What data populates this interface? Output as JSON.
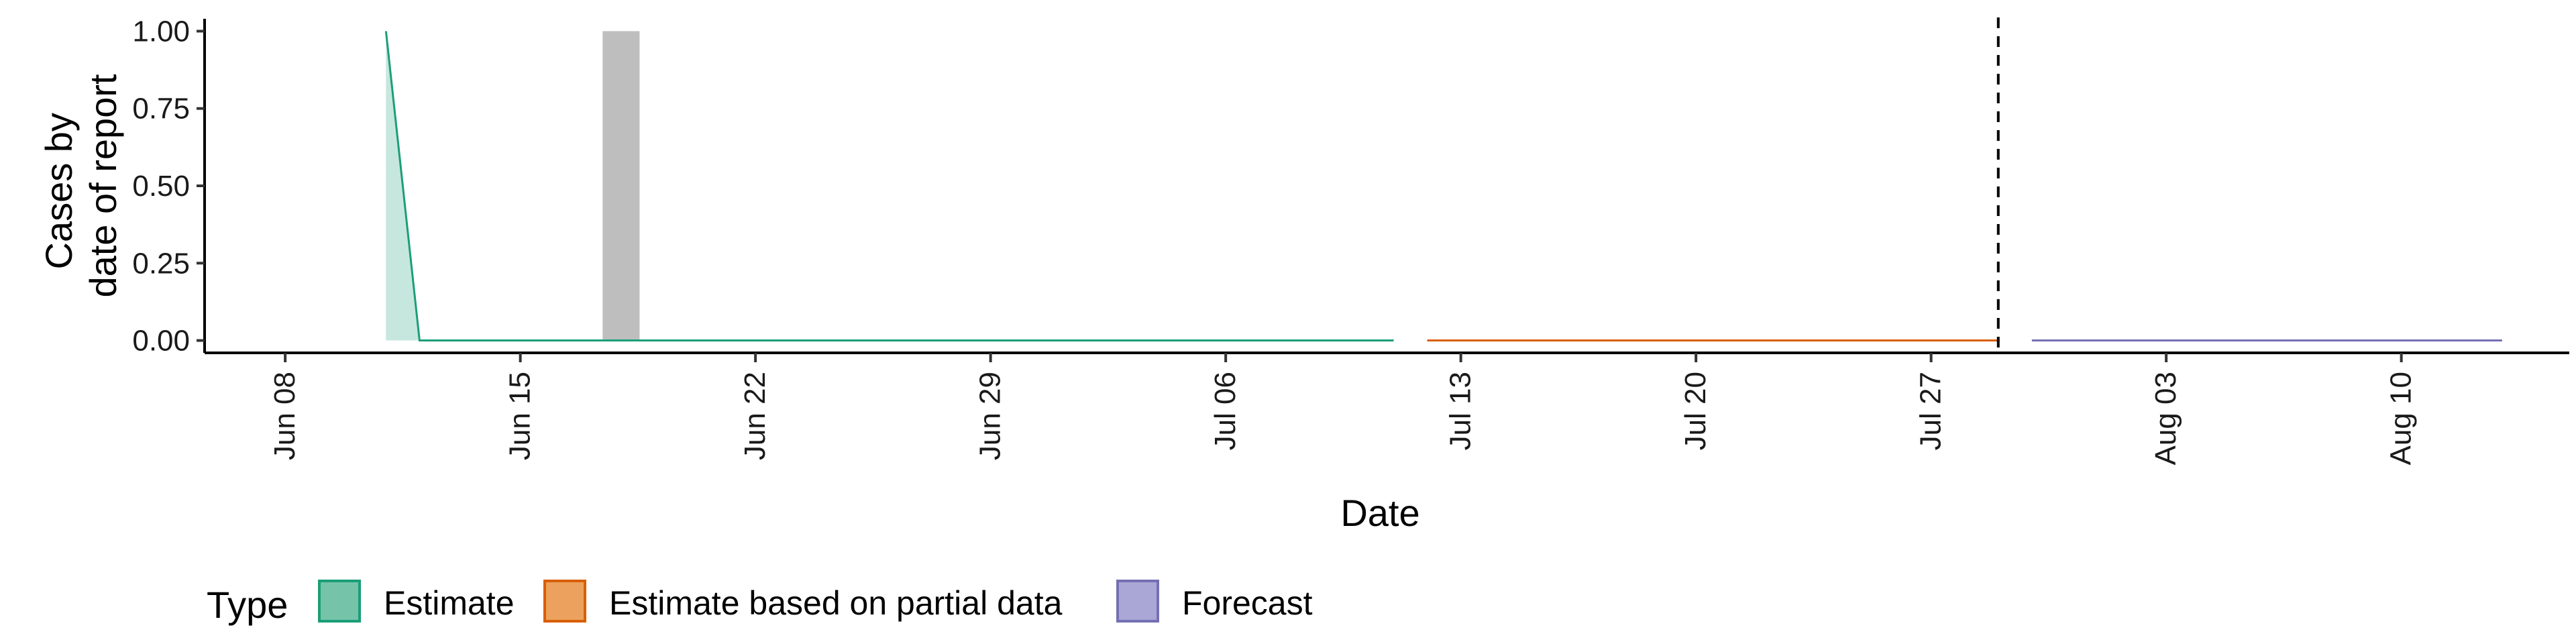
{
  "chart_data": {
    "type": "area",
    "xlabel": "Date",
    "ylabel_lines": [
      "Cases by",
      "date of report"
    ],
    "x_range": [
      "2020-06-06",
      "2020-08-15"
    ],
    "ylim": [
      -0.04,
      1.04
    ],
    "y_ticks": [
      0.0,
      0.25,
      0.5,
      0.75,
      1.0
    ],
    "y_tick_labels": [
      "0.00",
      "0.25",
      "0.50",
      "0.75",
      "1.00"
    ],
    "x_ticks": [
      "2020-06-08",
      "2020-06-15",
      "2020-06-22",
      "2020-06-29",
      "2020-07-06",
      "2020-07-13",
      "2020-07-20",
      "2020-07-27",
      "2020-08-03",
      "2020-08-10"
    ],
    "x_tick_labels": [
      "Jun 08",
      "Jun 15",
      "Jun 22",
      "Jun 29",
      "Jul 06",
      "Jul 13",
      "Jul 20",
      "Jul 27",
      "Aug 03",
      "Aug 10"
    ],
    "grid": false,
    "reported_cases": [
      {
        "date": "2020-06-18",
        "value": 1
      }
    ],
    "series": [
      {
        "name": "Estimate",
        "color": "#1b9e77",
        "points": [
          [
            "2020-06-11",
            1.0
          ],
          [
            "2020-06-12",
            0.0
          ],
          [
            "2020-07-11",
            0.0
          ]
        ]
      },
      {
        "name": "Estimate based on partial data",
        "color": "#d95f02",
        "points": [
          [
            "2020-07-12",
            0.0
          ],
          [
            "2020-07-29",
            0.0
          ]
        ]
      },
      {
        "name": "Forecast",
        "color": "#7570b3",
        "points": [
          [
            "2020-07-30",
            0.0
          ],
          [
            "2020-08-13",
            0.0
          ]
        ]
      }
    ],
    "vline_date": "2020-07-29",
    "legend": {
      "title": "Type",
      "position": "bottom-left",
      "items": [
        {
          "label": "Estimate",
          "fill": "#75c4a9",
          "stroke": "#1b9e77"
        },
        {
          "label": "Estimate based on partial data",
          "fill": "#eca25e",
          "stroke": "#d95f02"
        },
        {
          "label": "Forecast",
          "fill": "#aaa6d5",
          "stroke": "#7570b3"
        }
      ]
    }
  }
}
